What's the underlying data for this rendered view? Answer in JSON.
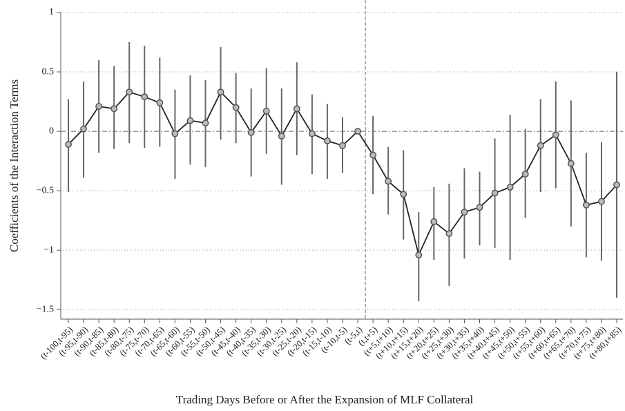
{
  "chart_data": {
    "type": "errorbar-line",
    "x_label": "Trading Days Before or After the Expansion of MLF Collateral",
    "y_label": "Coefficients of the Interaction Terms",
    "categories": [
      "(t-100,t-95)",
      "(t-95,t-90)",
      "(t-90,t-85)",
      "(t-85,t-80)",
      "(t-80,t-75)",
      "(t-75,t-70)",
      "(t-70,t-65)",
      "(t-65,t-60)",
      "(t-60,t-55)",
      "(t-55,t-50)",
      "(t-50,t-45)",
      "(t-45,t-40)",
      "(t-40,t-35)",
      "(t-35,t-30)",
      "(t-30,t-25)",
      "(t-25,t-20)",
      "(t-20,t-15)",
      "(t-15,t-10)",
      "(t-10,t-5)",
      "(t-5,t)",
      "(t,t+5)",
      "(t+5,t+10)",
      "(t+10,t+15)",
      "(t+15,t+20)",
      "(t+20,t+25)",
      "(t+25,t+30)",
      "(t+30,t+35)",
      "(t+35,t+40)",
      "(t+40,t+45)",
      "(t+45,t+50)",
      "(t+50,t+55)",
      "(t+55,t+60)",
      "(t+60,t+65)",
      "(t+65,t+70)",
      "(t+70,t+75)",
      "(t+75,t+80)",
      "(t+80,t+85)"
    ],
    "values": [
      -0.11,
      0.02,
      0.21,
      0.19,
      0.33,
      0.29,
      0.24,
      -0.02,
      0.09,
      0.07,
      0.33,
      0.2,
      -0.01,
      0.17,
      -0.04,
      0.19,
      -0.02,
      -0.08,
      -0.12,
      0,
      -0.2,
      -0.42,
      -0.53,
      -1.04,
      -0.76,
      -0.86,
      -0.68,
      -0.64,
      -0.52,
      -0.47,
      -0.36,
      -0.12,
      -0.03,
      -0.27,
      -0.62,
      -0.59,
      -0.45
    ],
    "upper": [
      0.27,
      0.42,
      0.6,
      0.55,
      0.75,
      0.72,
      0.62,
      0.35,
      0.47,
      0.43,
      0.71,
      0.49,
      0.36,
      0.53,
      0.36,
      0.58,
      0.31,
      0.23,
      0.12,
      null,
      0.13,
      -0.13,
      -0.16,
      -0.68,
      -0.47,
      -0.44,
      -0.31,
      -0.34,
      -0.06,
      0.14,
      0.02,
      0.27,
      0.42,
      0.26,
      -0.18,
      -0.09,
      0.5
    ],
    "lower": [
      -0.51,
      -0.39,
      -0.18,
      -0.15,
      -0.1,
      -0.14,
      -0.13,
      -0.4,
      -0.28,
      -0.3,
      -0.07,
      -0.1,
      -0.38,
      -0.19,
      -0.45,
      -0.2,
      -0.36,
      -0.4,
      -0.35,
      null,
      -0.53,
      -0.7,
      -0.91,
      -1.43,
      -1.08,
      -1.3,
      -1.07,
      -0.96,
      -0.98,
      -1.08,
      -0.73,
      -0.51,
      -0.48,
      -0.8,
      -1.06,
      -1.09,
      -1.4
    ],
    "ylim": [
      -1.58,
      1
    ],
    "yticks": [
      1,
      0.5,
      0,
      {
        "value": -0.5,
        "label": "−0.5"
      },
      {
        "value": -1,
        "label": "−1"
      },
      {
        "value": -1.5,
        "label": "−1.5"
      }
    ],
    "grid": true
  }
}
